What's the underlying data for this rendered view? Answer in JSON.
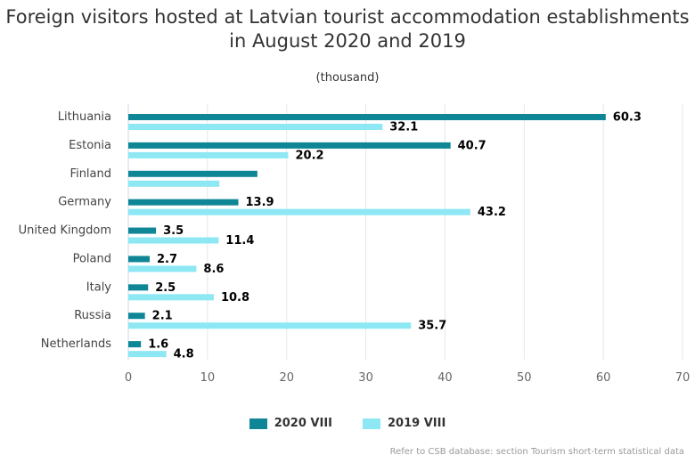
{
  "chart_data": {
    "type": "bar",
    "orientation": "horizontal",
    "title": "Foreign visitors hosted at Latvian tourist accommodation establishments in August 2020 and 2019",
    "subtitle": "(thousand)",
    "categories": [
      "Lithuania",
      "Estonia",
      "Finland",
      "Germany",
      "United Kingdom",
      "Poland",
      "Italy",
      "Russia",
      "Netherlands"
    ],
    "series": [
      {
        "name": "2020 VIII",
        "color": "#0f8696",
        "values": [
          60.3,
          40.7,
          16.3,
          13.9,
          3.5,
          2.7,
          2.5,
          2.1,
          1.6
        ],
        "labels": [
          "60.3",
          "40.7",
          "",
          "13.9",
          "3.5",
          "2.7",
          "2.5",
          "2.1",
          "1.6"
        ]
      },
      {
        "name": "2019 VIII",
        "color": "#8de8f4",
        "values": [
          32.1,
          20.2,
          11.5,
          43.2,
          11.4,
          8.6,
          10.8,
          35.7,
          4.8
        ],
        "labels": [
          "32.1",
          "20.2",
          "",
          "43.2",
          "11.4",
          "8.6",
          "10.8",
          "35.7",
          "4.8"
        ]
      }
    ],
    "xlim": [
      0,
      70
    ],
    "xticks": [
      "0",
      "10",
      "20",
      "30",
      "40",
      "50",
      "60",
      "70"
    ],
    "grid": true,
    "legend_position": "bottom-center"
  },
  "credits": "Refer to CSB database: section Tourism short-term statistical data"
}
